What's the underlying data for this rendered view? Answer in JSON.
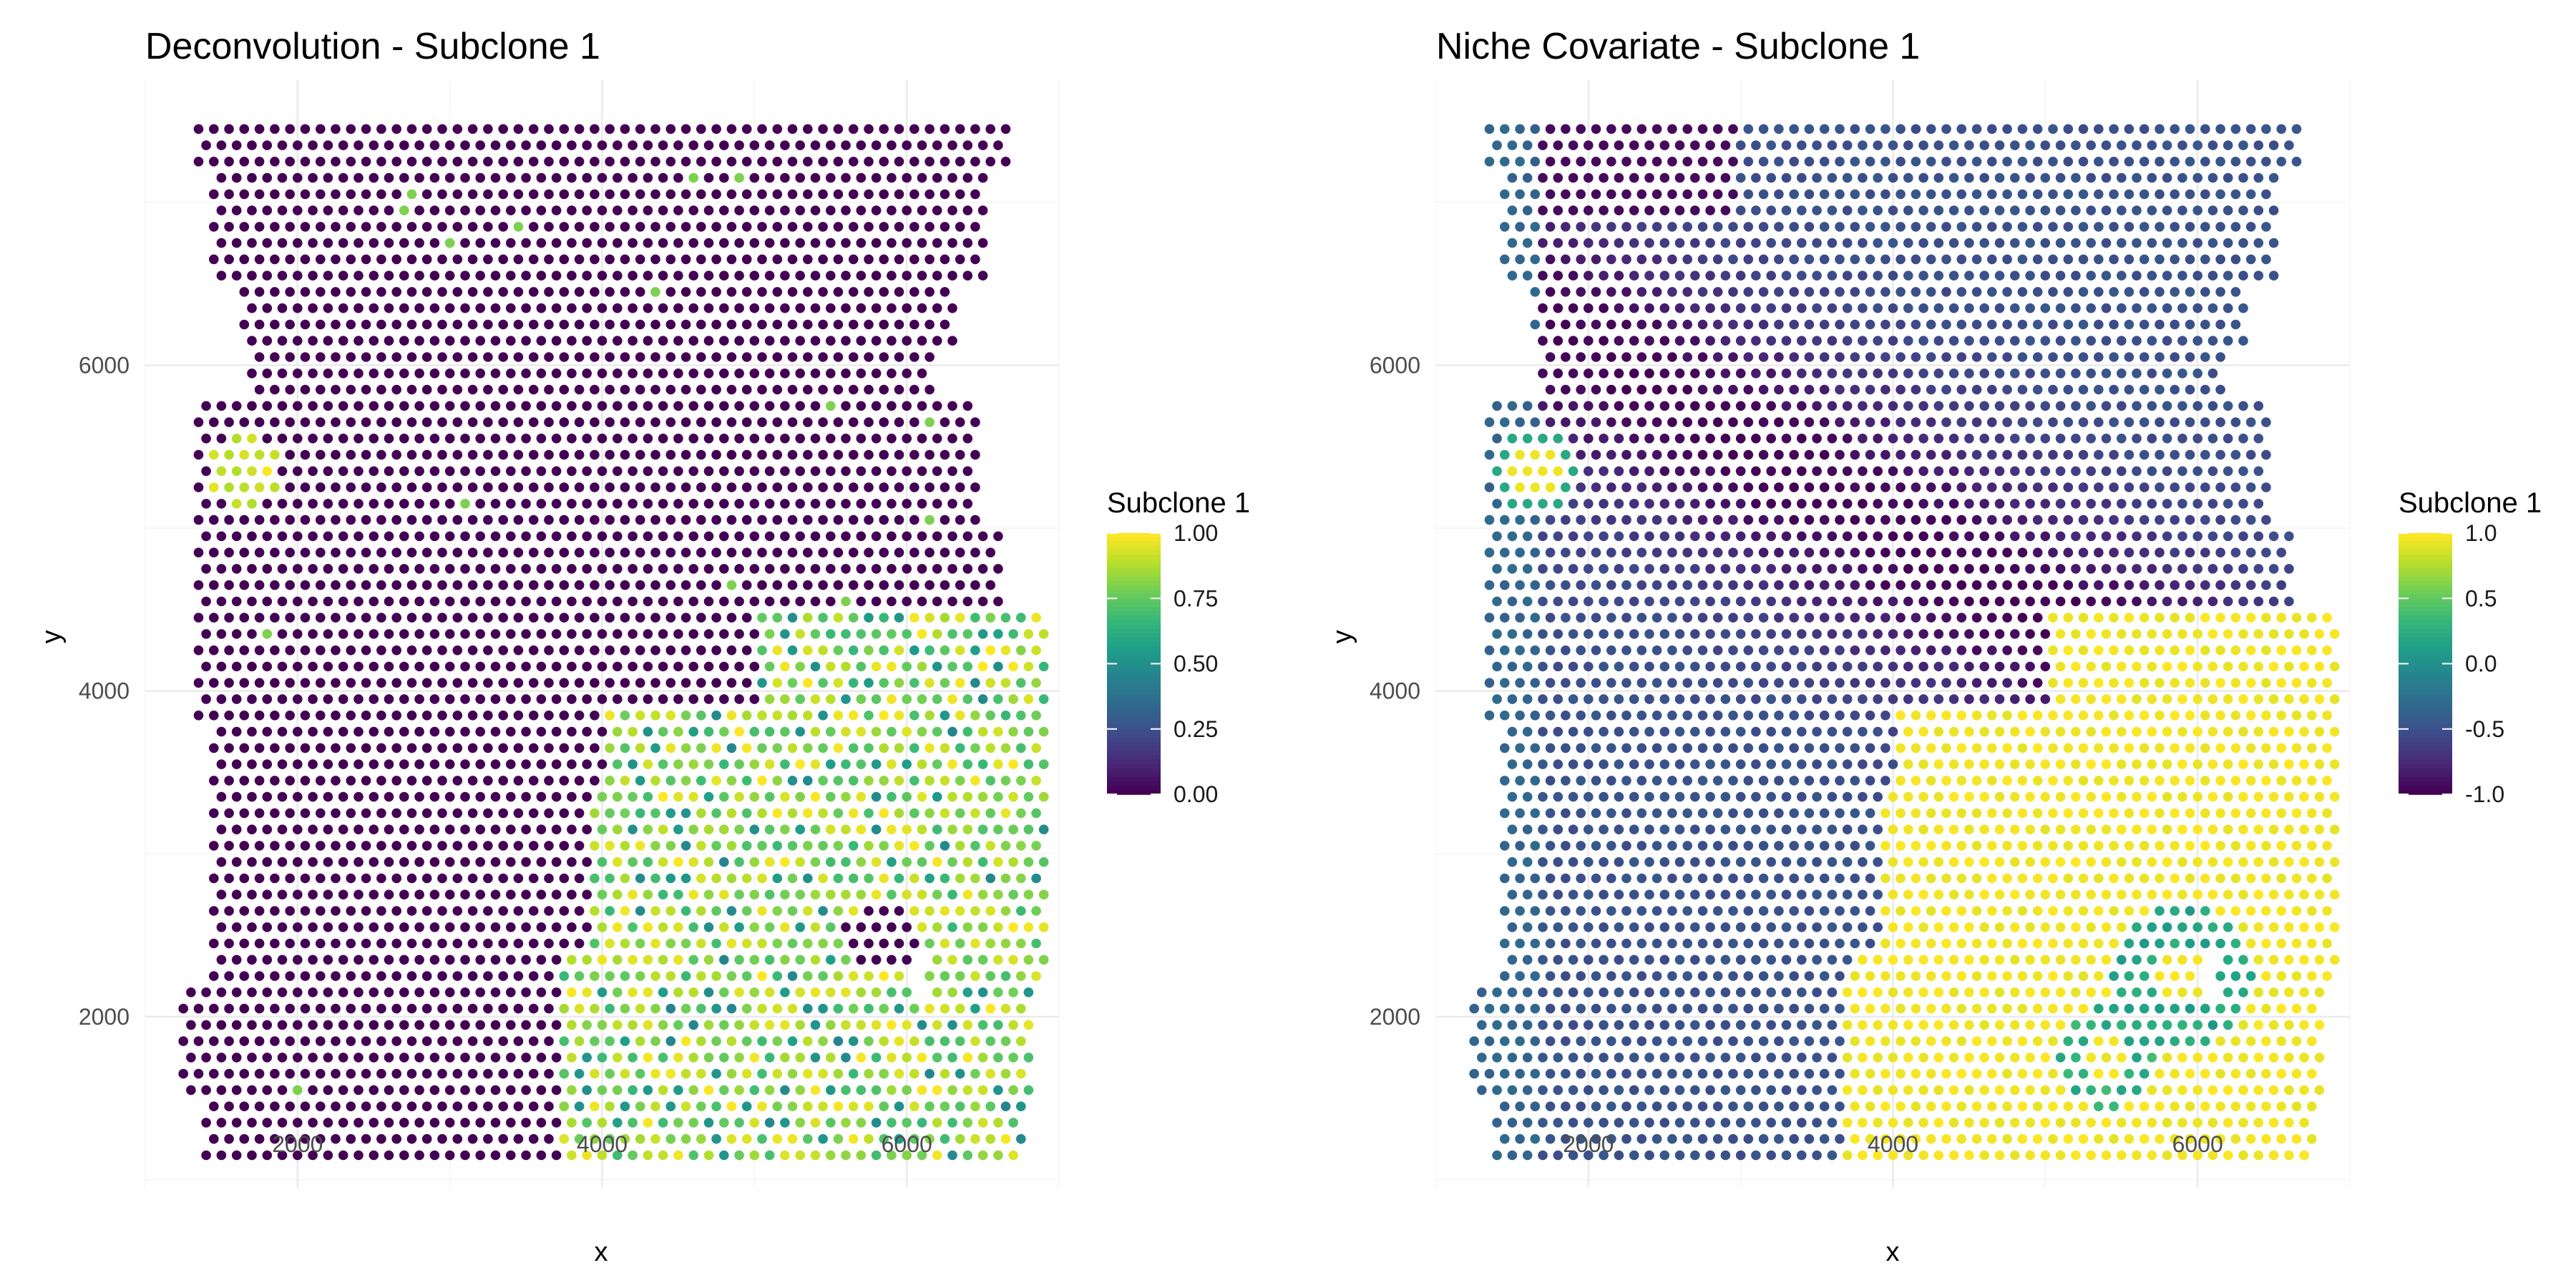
{
  "chart_data": [
    {
      "type": "scatter",
      "title": "Deconvolution - Subclone 1",
      "xlabel": "x",
      "ylabel": "y",
      "xlim": [
        1000,
        7000
      ],
      "ylim": [
        950,
        7750
      ],
      "xticks": [
        2000,
        4000,
        6000
      ],
      "yticks": [
        2000,
        4000,
        6000
      ],
      "xtick_labels": [
        "2000",
        "4000",
        "6000"
      ],
      "ytick_labels": [
        "2000",
        "4000",
        "6000"
      ],
      "grid": true,
      "color_scale": "viridis",
      "legend": {
        "title": "Subclone 1",
        "placement": "right",
        "range": [
          0,
          1
        ],
        "breaks": [
          1.0,
          0.75,
          0.5,
          0.25,
          0.0
        ],
        "labels": [
          "1.00",
          "0.75",
          "0.50",
          "0.25",
          "0.00"
        ]
      },
      "spot_grid": {
        "x_spacing": 100,
        "y_spacing": 100,
        "x_range": [
          1150,
          6900
        ],
        "y_range": [
          1100,
          7450
        ]
      },
      "regions": [
        {
          "description": "tissue background",
          "value": 0.0
        },
        {
          "description": "small cluster upper-left",
          "center": [
            1650,
            5350
          ],
          "value": 0.95
        },
        {
          "description": "lower-right tumor block",
          "x_range": [
            3800,
            6900
          ],
          "y_range": [
            1100,
            4500
          ],
          "value_range": [
            0.5,
            1.0
          ]
        },
        {
          "description": "void inside block",
          "center": [
            5800,
            2500
          ],
          "value": 0.0
        }
      ]
    },
    {
      "type": "scatter",
      "title": "Niche Covariate - Subclone 1",
      "xlabel": "x",
      "ylabel": "y",
      "xlim": [
        1000,
        7000
      ],
      "ylim": [
        950,
        7750
      ],
      "xticks": [
        2000,
        4000,
        6000
      ],
      "yticks": [
        2000,
        4000,
        6000
      ],
      "xtick_labels": [
        "2000",
        "4000",
        "6000"
      ],
      "ytick_labels": [
        "2000",
        "4000",
        "6000"
      ],
      "grid": true,
      "color_scale": "viridis",
      "legend": {
        "title": "Subclone 1",
        "placement": "right",
        "range": [
          -1,
          1
        ],
        "breaks": [
          1.0,
          0.5,
          0.0,
          -0.5,
          -1.0
        ],
        "labels": [
          "1.0",
          "0.5",
          "0.0",
          "-0.5",
          "-1.0"
        ]
      },
      "spot_grid": {
        "x_spacing": 100,
        "y_spacing": 100,
        "x_range": [
          1150,
          6900
        ],
        "y_range": [
          1100,
          7450
        ]
      },
      "regions": [
        {
          "description": "background",
          "value": -0.5
        },
        {
          "description": "upper dark band",
          "value": -0.95
        },
        {
          "description": "small cluster upper-left",
          "center": [
            1650,
            5350
          ],
          "value": 0.9
        },
        {
          "description": "lower-right tumor block",
          "x_range": [
            3700,
            6800
          ],
          "y_range": [
            1100,
            4500
          ],
          "value": 1.0
        },
        {
          "description": "green ring inside block",
          "center": [
            5900,
            2300
          ],
          "value": 0.1
        }
      ]
    }
  ],
  "colors": {
    "viridis": [
      "#440154",
      "#482878",
      "#3e4a89",
      "#31688e",
      "#26828e",
      "#1f9e89",
      "#35b779",
      "#6ece58",
      "#b5de2b",
      "#fde725"
    ],
    "grid": "#ebebeb",
    "tick_text": "#4d4d4d"
  }
}
